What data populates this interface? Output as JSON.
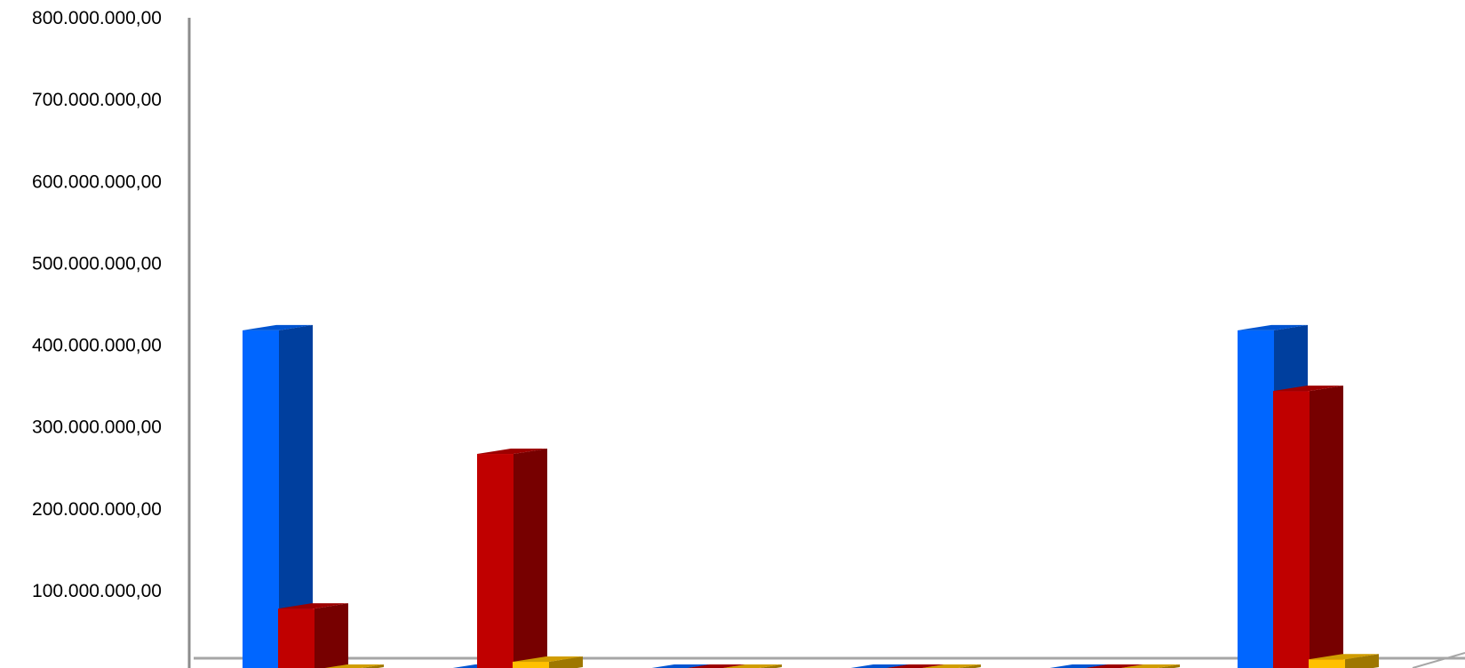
{
  "chart_data": {
    "type": "bar",
    "style": "3d-clustered-column",
    "title": "",
    "xlabel": "",
    "ylabel": "",
    "ylim": [
      0,
      800000000
    ],
    "yticks": [
      {
        "value": 800000000,
        "label": "800.000.000,00"
      },
      {
        "value": 700000000,
        "label": "700.000.000,00"
      },
      {
        "value": 600000000,
        "label": "600.000.000,00"
      },
      {
        "value": 500000000,
        "label": "500.000.000,00"
      },
      {
        "value": 400000000,
        "label": "400.000.000,00"
      },
      {
        "value": 300000000,
        "label": "300.000.000,00"
      },
      {
        "value": 200000000,
        "label": "200.000.000,00"
      },
      {
        "value": 100000000,
        "label": "100.000.000,00"
      }
    ],
    "grid": false,
    "legend": "none",
    "category_count": 6,
    "series": [
      {
        "color": "#0066FF",
        "values": [
          418000000,
          0,
          0,
          0,
          0,
          418000000
        ]
      },
      {
        "color": "#C00000",
        "values": [
          78000000,
          267000000,
          0,
          0,
          0,
          344000000
        ]
      },
      {
        "color": "#FFC000",
        "values": [
          0,
          13000000,
          0,
          0,
          0,
          16000000
        ]
      }
    ]
  }
}
